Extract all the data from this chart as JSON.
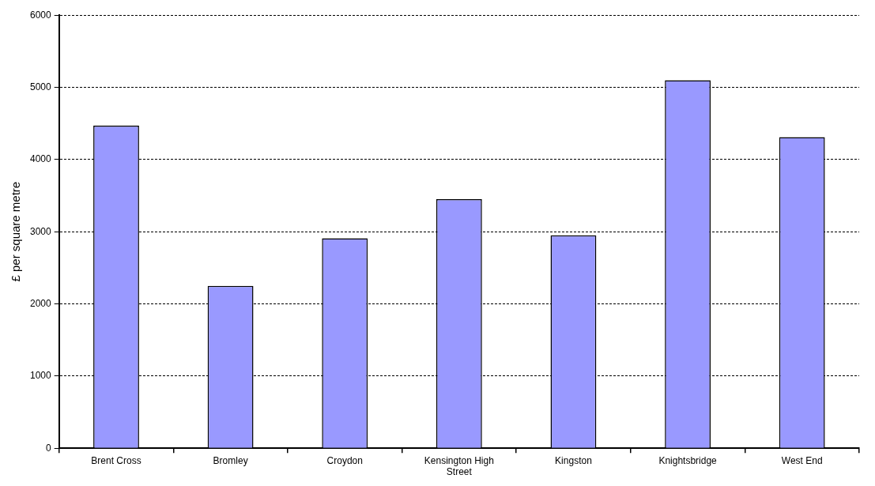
{
  "chart_data": {
    "type": "bar",
    "ylabel": "£ per square metre",
    "categories": [
      "Brent Cross",
      "Bromley",
      "Croydon",
      "Kensington High Street",
      "Kingston",
      "Knightsbridge",
      "West End"
    ],
    "values": [
      4470,
      2250,
      2910,
      3450,
      2950,
      5100,
      4310
    ],
    "color": "#9999ff",
    "ylim": [
      0,
      6000
    ],
    "yticks": [
      0,
      1000,
      2000,
      3000,
      4000,
      5000,
      6000
    ],
    "grid": "y",
    "legend": false
  }
}
